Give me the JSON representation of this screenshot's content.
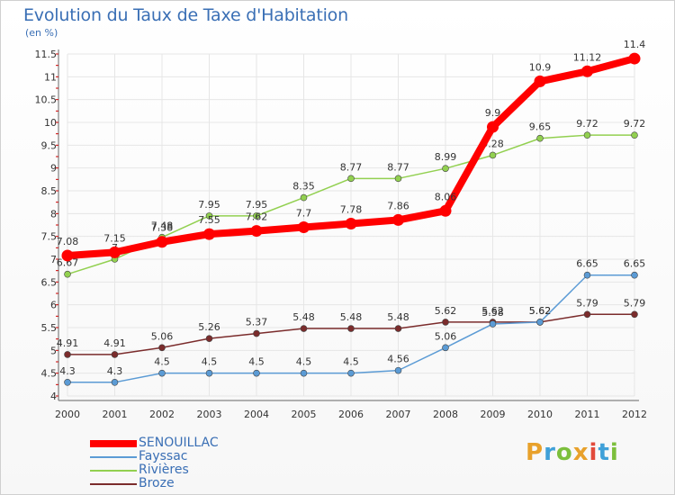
{
  "header": {
    "title": "Evolution du Taux de Taxe d'Habitation",
    "subtitle": "(en %)"
  },
  "logo": {
    "text": "Proxiti",
    "colors": [
      "#e8a12b",
      "#3fa0d8",
      "#7cbf3c",
      "#e8a12b",
      "#e24a3b",
      "#3fa0d8",
      "#7cbf3c"
    ]
  },
  "chart_data": {
    "type": "line",
    "title": "Evolution du Taux de Taxe d'Habitation",
    "subtitle": "(en %)",
    "xlabel": "",
    "ylabel": "(en %)",
    "x": [
      "2000",
      "2001",
      "2002",
      "2003",
      "2004",
      "2005",
      "2006",
      "2007",
      "2008",
      "2009",
      "2010",
      "2011",
      "2012"
    ],
    "ylim": [
      4,
      11.5
    ],
    "yticks": [
      "4",
      "4.5",
      "5",
      "5.5",
      "6",
      "6.5",
      "7",
      "7.5",
      "8",
      "8.5",
      "9",
      "9.5",
      "10",
      "10.5",
      "11",
      "11.5"
    ],
    "grid": true,
    "legend": "bottom-left",
    "series": [
      {
        "name": "SENOUILLAC",
        "color": "#ff0000",
        "values": [
          7.08,
          7.15,
          7.38,
          7.55,
          7.62,
          7.7,
          7.78,
          7.86,
          8.06,
          9.9,
          10.9,
          11.12,
          11.4
        ],
        "labels": [
          "7.08",
          "7.15",
          "7.38",
          "7.55",
          "7.62",
          "7.7",
          "7.78",
          "7.86",
          "8.06",
          "9.9",
          "10.9",
          "11.12",
          "11.4"
        ]
      },
      {
        "name": "Fayssac",
        "color": "#5b9bd5",
        "values": [
          4.3,
          4.3,
          4.5,
          4.5,
          4.5,
          4.5,
          4.5,
          4.56,
          5.06,
          5.58,
          5.62,
          6.65,
          6.65
        ],
        "labels": [
          "4.3",
          "4.3",
          "4.5",
          "4.5",
          "4.5",
          "4.5",
          "4.5",
          "4.56",
          "5.06",
          "5.58",
          "5.62",
          "6.65",
          "6.65"
        ]
      },
      {
        "name": "Rivières",
        "color": "#92d050",
        "values": [
          6.67,
          7.0,
          7.48,
          7.95,
          7.95,
          8.35,
          8.77,
          8.77,
          8.99,
          9.28,
          9.65,
          9.72,
          9.72
        ],
        "labels": [
          "6.67",
          "7",
          "7.48",
          "7.95",
          "7.95",
          "8.35",
          "8.77",
          "8.77",
          "8.99",
          "9.28",
          "9.65",
          "9.72",
          "9.72"
        ]
      },
      {
        "name": "Broze",
        "color": "#7b2c2c",
        "values": [
          4.91,
          4.91,
          5.06,
          5.26,
          5.37,
          5.48,
          5.48,
          5.48,
          5.62,
          5.62,
          5.62,
          5.79,
          5.79
        ],
        "labels": [
          "4.91",
          "4.91",
          "5.06",
          "5.26",
          "5.37",
          "5.48",
          "5.48",
          "5.48",
          "5.62",
          "5.62",
          "5.62",
          "5.79",
          "5.79"
        ]
      }
    ]
  }
}
